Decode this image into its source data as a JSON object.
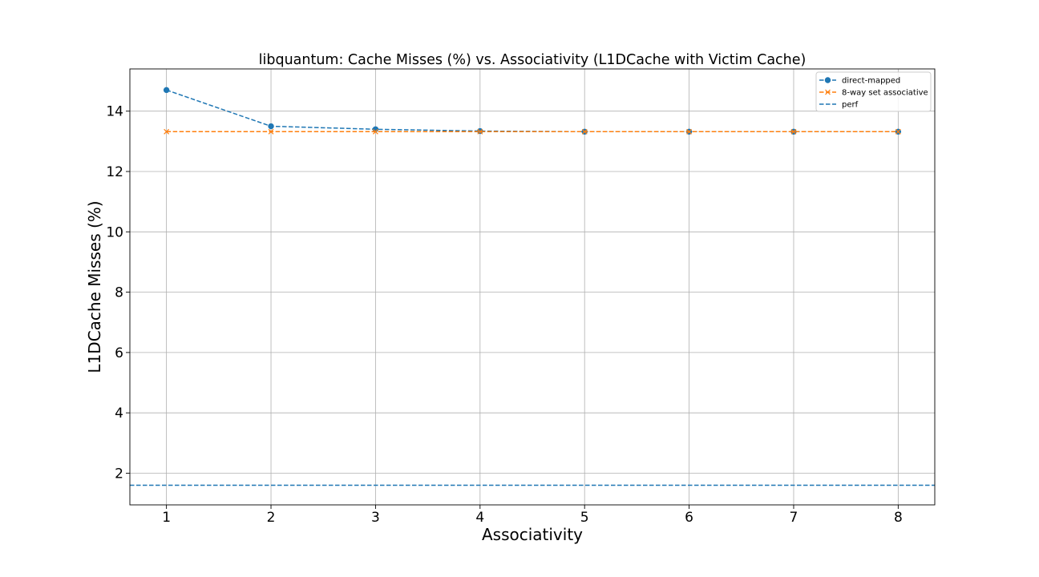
{
  "chart_data": {
    "type": "line",
    "title": "libquantum: Cache Misses (%) vs. Associativity (L1DCache with Victim Cache)",
    "xlabel": "Associativity",
    "ylabel": "L1DCache Misses (%)",
    "x": [
      1,
      2,
      3,
      4,
      5,
      6,
      7,
      8
    ],
    "xlim": [
      0.65,
      8.35
    ],
    "ylim": [
      0.95,
      15.4
    ],
    "xticks": [
      "1",
      "2",
      "3",
      "4",
      "5",
      "6",
      "7",
      "8"
    ],
    "yticks": [
      "2",
      "4",
      "6",
      "8",
      "10",
      "12",
      "14"
    ],
    "grid": true,
    "legend_position": "top-right",
    "series": [
      {
        "name": "direct-mapped",
        "values": [
          14.7,
          13.5,
          13.4,
          13.34,
          13.32,
          13.32,
          13.32,
          13.32
        ],
        "color": "#1f77b4",
        "marker": "circle",
        "linestyle": "dashed"
      },
      {
        "name": "8-way set associative",
        "values": [
          13.32,
          13.32,
          13.32,
          13.32,
          13.32,
          13.32,
          13.32,
          13.32
        ],
        "color": "#ff7f0e",
        "marker": "x",
        "linestyle": "dashed"
      }
    ],
    "reference_lines": [
      {
        "name": "perf",
        "y": 1.6,
        "color": "#1f77b4",
        "linestyle": "dashed"
      }
    ]
  }
}
